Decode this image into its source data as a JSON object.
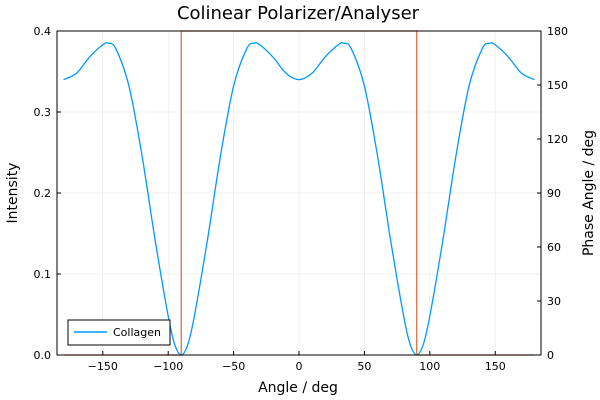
{
  "chart_data": {
    "type": "line",
    "title": "Colinear Polarizer/Analyser",
    "xlabel": "Angle / deg",
    "ylabel": "Intensity",
    "y2label": "Phase Angle / deg",
    "xlim": [
      -185,
      185
    ],
    "ylim": [
      0,
      0.4
    ],
    "y2lim": [
      0,
      180
    ],
    "xticks": [
      -150,
      -100,
      -50,
      0,
      50,
      100,
      150
    ],
    "xtick_labels": [
      "−150",
      "−100",
      "−50",
      "0",
      "50",
      "100",
      "150"
    ],
    "yticks": [
      0,
      0.1,
      0.2,
      0.3,
      0.4
    ],
    "ytick_labels": [
      "0.0",
      "0.1",
      "0.2",
      "0.3",
      "0.4"
    ],
    "y2ticks": [
      0,
      30,
      60,
      90,
      120,
      150,
      180
    ],
    "y2tick_labels": [
      "0",
      "30",
      "60",
      "90",
      "120",
      "150",
      "180"
    ],
    "grid": true,
    "legend_position": "bottom-left",
    "series": [
      {
        "name": "Collagen",
        "axis": "left",
        "color": "#009AFA",
        "x": [
          -180,
          -170,
          -160,
          -150,
          -146,
          -140,
          -130,
          -120,
          -110,
          -100,
          -95,
          -90,
          -85,
          -80,
          -70,
          -60,
          -50,
          -40,
          -34,
          -30,
          -20,
          -10,
          0,
          10,
          20,
          30,
          34,
          40,
          50,
          60,
          70,
          80,
          85,
          90,
          95,
          100,
          110,
          120,
          130,
          140,
          146,
          150,
          160,
          170,
          180
        ],
        "values": [
          0.34,
          0.348,
          0.368,
          0.383,
          0.385,
          0.378,
          0.332,
          0.246,
          0.142,
          0.048,
          0.013,
          0.0,
          0.013,
          0.048,
          0.142,
          0.246,
          0.332,
          0.378,
          0.385,
          0.383,
          0.368,
          0.348,
          0.34,
          0.348,
          0.368,
          0.383,
          0.385,
          0.378,
          0.332,
          0.246,
          0.142,
          0.048,
          0.013,
          0.0,
          0.013,
          0.048,
          0.142,
          0.246,
          0.332,
          0.378,
          0.385,
          0.383,
          0.368,
          0.348,
          0.34
        ]
      },
      {
        "axis": "right",
        "color": "#E26F46",
        "step": true,
        "x": [
          -180,
          -90,
          -90,
          90,
          90,
          180
        ],
        "values": [
          0,
          0,
          180,
          180,
          0,
          0
        ]
      }
    ]
  }
}
